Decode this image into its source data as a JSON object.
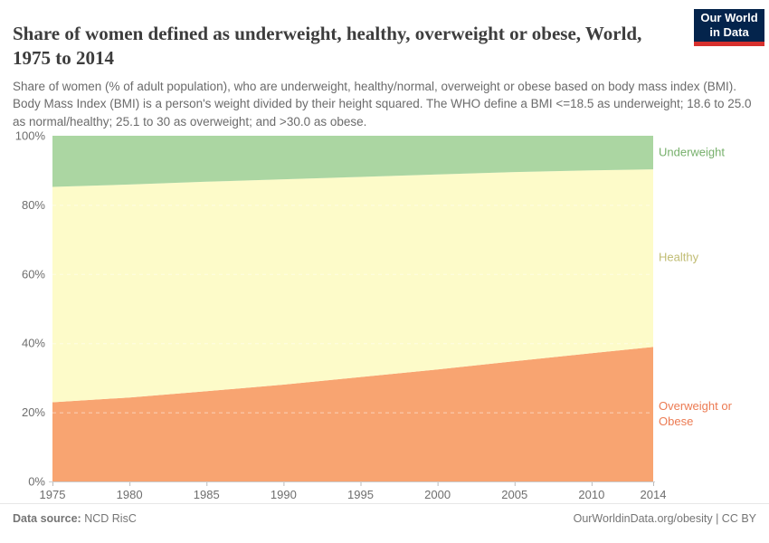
{
  "header": {
    "title": "Share of women defined as underweight, healthy, overweight or obese, World, 1975 to 2014",
    "subtitle": "Share of women (% of adult population), who are underweight, healthy/normal, overweight or obese based on body mass index (BMI). Body Mass Index (BMI) is a person's weight divided by their height squared. The WHO define a BMI <=18.5 as underweight; 18.6 to 25.0 as normal/healthy; 25.1 to 30 as overweight; and >30.0 as obese."
  },
  "logo": {
    "line1": "Our World",
    "line2": "in Data",
    "bg_color": "#04244c",
    "bar_color": "#d7302d"
  },
  "footer": {
    "datasource_label": "Data source:",
    "datasource_value": " NCD RisC",
    "right_text": "OurWorldinData.org/obesity | CC BY"
  },
  "chart_data": {
    "type": "area",
    "stacked": true,
    "title": "Share of women defined as underweight, healthy, overweight or obese, World, 1975 to 2014",
    "xlabel": "",
    "ylabel": "",
    "x": [
      1975,
      1980,
      1985,
      1990,
      1995,
      2000,
      2005,
      2010,
      2014
    ],
    "series": [
      {
        "name": "Overweight or Obese",
        "color": "#f8a471",
        "label_color": "#ec7b53",
        "values": [
          22.9,
          24.3,
          26.1,
          28.0,
          30.2,
          32.4,
          34.8,
          37.1,
          38.9
        ]
      },
      {
        "name": "Healthy",
        "color": "#fdfbc9",
        "label_color": "#c0bc73",
        "values": [
          62.3,
          61.6,
          60.6,
          59.4,
          57.9,
          56.4,
          54.7,
          52.9,
          51.4
        ]
      },
      {
        "name": "Underweight",
        "color": "#abd6a2",
        "label_color": "#77b06c",
        "values": [
          14.8,
          14.1,
          13.3,
          12.6,
          11.9,
          11.2,
          10.5,
          10.0,
          9.7
        ]
      }
    ],
    "ylim": [
      0,
      100
    ],
    "yticks": [
      0,
      20,
      40,
      60,
      80,
      100
    ],
    "ytick_suffix": "%",
    "xticks": [
      1975,
      1980,
      1985,
      1990,
      1995,
      2000,
      2005,
      2010,
      2014
    ],
    "grid": true,
    "grid_style": "dashed",
    "legend_position": "right",
    "axis_color": "#cccccc",
    "tick_color": "#bbbbbb",
    "tick_label_color": "#6e6e6e"
  }
}
